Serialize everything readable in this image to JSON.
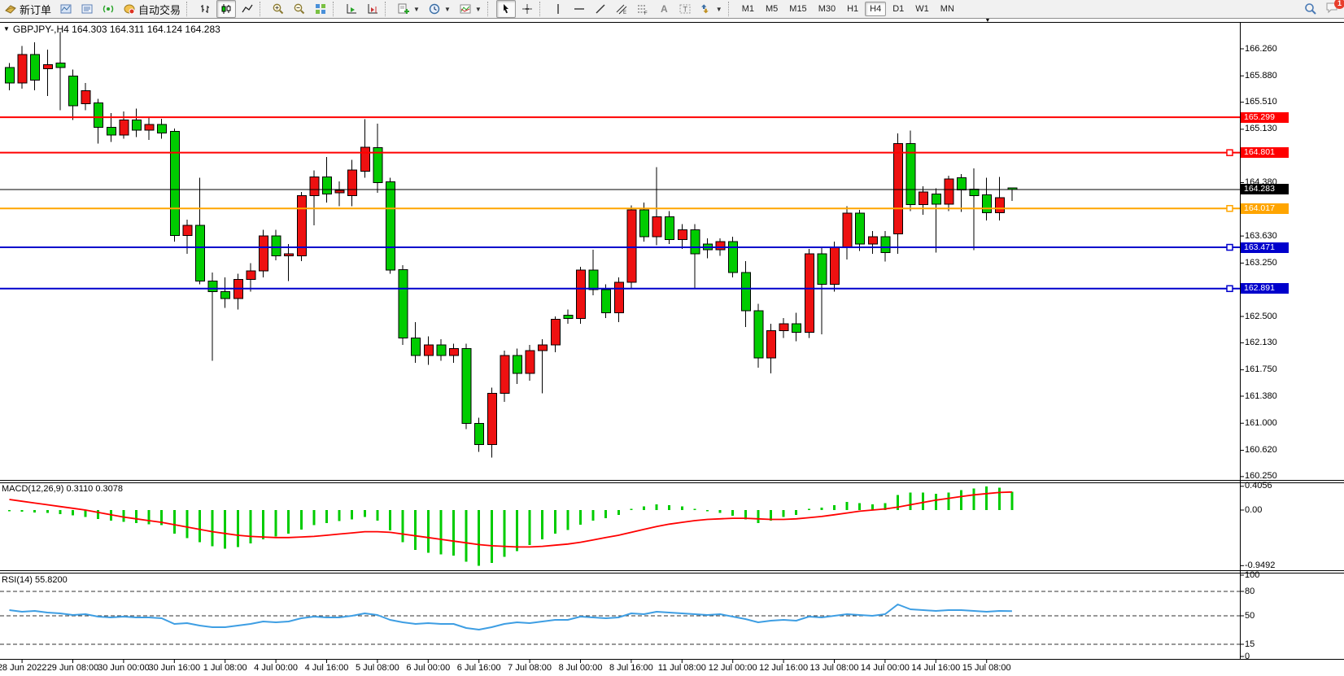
{
  "toolbar": {
    "badge_count": "1",
    "items": [
      {
        "type": "button",
        "name": "new-order",
        "icon": "new-order-icon",
        "label": "新订单"
      },
      {
        "type": "button",
        "name": "chart-profile",
        "icon": "profile-icon"
      },
      {
        "type": "button",
        "name": "market-watch",
        "icon": "market-watch-icon"
      },
      {
        "type": "button",
        "name": "signals",
        "icon": "signal-icon"
      },
      {
        "type": "button",
        "name": "auto-trading",
        "icon": "autotrade-icon",
        "label": "自动交易"
      },
      {
        "type": "sep"
      },
      {
        "type": "button",
        "name": "bar-chart",
        "icon": "bar-chart-icon"
      },
      {
        "type": "button",
        "name": "candlestick-chart",
        "icon": "candlestick-icon",
        "active": true
      },
      {
        "type": "button",
        "name": "line-chart",
        "icon": "line-chart-icon"
      },
      {
        "type": "sep"
      },
      {
        "type": "button",
        "name": "zoom-in",
        "icon": "zoom-in-icon"
      },
      {
        "type": "button",
        "name": "zoom-out",
        "icon": "zoom-out-icon"
      },
      {
        "type": "button",
        "name": "tile-windows",
        "icon": "tile-windows-icon"
      },
      {
        "type": "sep"
      },
      {
        "type": "button",
        "name": "auto-scroll",
        "icon": "auto-scroll-icon"
      },
      {
        "type": "button",
        "name": "chart-shift",
        "icon": "chart-shift-icon"
      },
      {
        "type": "sep"
      },
      {
        "type": "button",
        "name": "new-chart",
        "icon": "new-chart-icon",
        "dropdown": true
      },
      {
        "type": "button",
        "name": "period-profiles",
        "icon": "clock-icon",
        "dropdown": true
      },
      {
        "type": "button",
        "name": "indicators",
        "icon": "indicators-icon",
        "dropdown": true
      },
      {
        "type": "sep"
      },
      {
        "type": "button",
        "name": "cursor",
        "icon": "cursor-icon",
        "active": true
      },
      {
        "type": "button",
        "name": "crosshair",
        "icon": "crosshair-icon"
      },
      {
        "type": "sep"
      },
      {
        "type": "button",
        "name": "vertical-line",
        "icon": "vline-icon"
      },
      {
        "type": "button",
        "name": "horizontal-line",
        "icon": "hline-icon"
      },
      {
        "type": "button",
        "name": "trendline",
        "icon": "trendline-icon"
      },
      {
        "type": "button",
        "name": "equidistant-channel",
        "icon": "channel-icon"
      },
      {
        "type": "button",
        "name": "fibonacci",
        "icon": "fibo-icon"
      },
      {
        "type": "button",
        "name": "text",
        "icon": "text-icon"
      },
      {
        "type": "button",
        "name": "text-label",
        "icon": "label-icon"
      },
      {
        "type": "button",
        "name": "arrows",
        "icon": "arrows-icon",
        "dropdown": true
      },
      {
        "type": "sep"
      }
    ],
    "timeframes": [
      "M1",
      "M5",
      "M15",
      "M30",
      "H1",
      "H4",
      "D1",
      "W1",
      "MN"
    ],
    "active_timeframe": "H4"
  },
  "chart": {
    "title": "GBPJPY-,H4  164.303 164.311 164.124 164.283",
    "macd_label": "MACD(12,26,9) 0.3110 0.3078",
    "rsi_label": "RSI(14) 55.8200",
    "scroll_marker": "▼"
  },
  "chart_data": {
    "type": "candlestick",
    "symbol": "GBPJPY-",
    "timeframe": "H4",
    "ohlc_current": {
      "open": 164.303,
      "high": 164.311,
      "low": 164.124,
      "close": 164.283
    },
    "ylim": [
      160.25,
      166.26
    ],
    "bull_color": "#ee1111",
    "bear_color": "#00cc00",
    "candles": [
      [
        166.0,
        166.06,
        165.68,
        165.78
      ],
      [
        165.78,
        166.3,
        165.7,
        166.18
      ],
      [
        166.18,
        166.35,
        165.68,
        165.82
      ],
      [
        165.98,
        166.25,
        165.6,
        166.04
      ],
      [
        166.06,
        166.5,
        165.4,
        166.0
      ],
      [
        165.88,
        165.97,
        165.26,
        165.46
      ],
      [
        165.49,
        165.78,
        165.4,
        165.67
      ],
      [
        165.5,
        165.56,
        164.93,
        165.16
      ],
      [
        165.16,
        165.36,
        164.95,
        165.05
      ],
      [
        165.05,
        165.38,
        165.0,
        165.26
      ],
      [
        165.26,
        165.42,
        165.02,
        165.12
      ],
      [
        165.12,
        165.3,
        164.98,
        165.2
      ],
      [
        165.2,
        165.28,
        165.0,
        165.08
      ],
      [
        165.1,
        165.14,
        163.55,
        163.64
      ],
      [
        163.64,
        163.86,
        163.38,
        163.78
      ],
      [
        163.78,
        164.45,
        162.95,
        163.0
      ],
      [
        163.0,
        163.12,
        161.88,
        162.85
      ],
      [
        162.85,
        163.05,
        162.62,
        162.75
      ],
      [
        162.75,
        163.1,
        162.6,
        163.02
      ],
      [
        163.02,
        163.25,
        162.85,
        163.14
      ],
      [
        163.14,
        163.72,
        163.05,
        163.63
      ],
      [
        163.63,
        163.72,
        163.29,
        163.35
      ],
      [
        163.35,
        163.52,
        163.0,
        163.38
      ],
      [
        163.35,
        164.25,
        163.28,
        164.2
      ],
      [
        164.2,
        164.55,
        163.78,
        164.46
      ],
      [
        164.46,
        164.74,
        164.1,
        164.22
      ],
      [
        164.24,
        164.4,
        164.05,
        164.27
      ],
      [
        164.2,
        164.7,
        164.05,
        164.56
      ],
      [
        164.54,
        165.27,
        164.45,
        164.88
      ],
      [
        164.87,
        165.21,
        164.24,
        164.38
      ],
      [
        164.39,
        164.45,
        163.1,
        163.15
      ],
      [
        163.16,
        163.22,
        162.1,
        162.2
      ],
      [
        162.2,
        162.42,
        161.85,
        161.95
      ],
      [
        161.95,
        162.22,
        161.82,
        162.1
      ],
      [
        162.1,
        162.18,
        161.88,
        161.95
      ],
      [
        161.95,
        162.12,
        161.85,
        162.05
      ],
      [
        162.05,
        162.12,
        160.92,
        161.0
      ],
      [
        161.0,
        161.08,
        160.6,
        160.7
      ],
      [
        160.7,
        161.5,
        160.52,
        161.42
      ],
      [
        161.42,
        162.02,
        161.3,
        161.95
      ],
      [
        161.95,
        162.05,
        161.55,
        161.7
      ],
      [
        161.7,
        162.1,
        161.6,
        162.02
      ],
      [
        162.02,
        162.18,
        161.42,
        162.1
      ],
      [
        162.1,
        162.5,
        162.0,
        162.46
      ],
      [
        162.52,
        162.6,
        162.4,
        162.47
      ],
      [
        162.47,
        163.2,
        162.4,
        163.15
      ],
      [
        163.15,
        163.44,
        162.8,
        162.88
      ],
      [
        162.88,
        162.95,
        162.48,
        162.55
      ],
      [
        162.55,
        163.05,
        162.42,
        162.98
      ],
      [
        162.98,
        164.06,
        162.9,
        164.0
      ],
      [
        164.0,
        164.1,
        163.55,
        163.62
      ],
      [
        163.62,
        164.6,
        163.5,
        163.9
      ],
      [
        163.9,
        163.98,
        163.52,
        163.58
      ],
      [
        163.58,
        163.8,
        163.45,
        163.72
      ],
      [
        163.72,
        163.8,
        162.9,
        163.38
      ],
      [
        163.52,
        163.6,
        163.32,
        163.44
      ],
      [
        163.44,
        163.6,
        163.35,
        163.55
      ],
      [
        163.55,
        163.62,
        163.05,
        163.12
      ],
      [
        163.12,
        163.28,
        162.35,
        162.58
      ],
      [
        162.58,
        162.68,
        161.78,
        161.92
      ],
      [
        161.92,
        162.4,
        161.7,
        162.3
      ],
      [
        162.3,
        162.48,
        162.2,
        162.4
      ],
      [
        162.4,
        162.55,
        162.15,
        162.28
      ],
      [
        162.28,
        163.45,
        162.2,
        163.38
      ],
      [
        163.38,
        163.48,
        162.25,
        162.95
      ],
      [
        162.95,
        163.55,
        162.85,
        163.48
      ],
      [
        163.48,
        164.05,
        163.3,
        163.95
      ],
      [
        163.95,
        164.0,
        163.42,
        163.52
      ],
      [
        163.52,
        163.7,
        163.38,
        163.62
      ],
      [
        163.62,
        163.7,
        163.27,
        163.4
      ],
      [
        163.66,
        165.07,
        163.38,
        164.93
      ],
      [
        164.93,
        165.11,
        163.98,
        164.07
      ],
      [
        164.07,
        164.33,
        163.93,
        164.25
      ],
      [
        164.22,
        164.3,
        163.4,
        164.08
      ],
      [
        164.08,
        164.48,
        163.98,
        164.43
      ],
      [
        164.45,
        164.5,
        163.97,
        164.28
      ],
      [
        164.29,
        164.58,
        163.43,
        164.2
      ],
      [
        164.21,
        164.45,
        163.85,
        163.96
      ],
      [
        163.96,
        164.46,
        163.85,
        164.17
      ],
      [
        164.303,
        164.311,
        164.124,
        164.283
      ]
    ],
    "hlines": [
      {
        "price": 165.299,
        "label": "165.299",
        "color": "#ff0000",
        "width": 2,
        "handle": false
      },
      {
        "price": 164.801,
        "label": "164.801",
        "color": "#ff0000",
        "width": 2,
        "handle": true
      },
      {
        "price": 164.283,
        "label": "164.283",
        "color": "#000000",
        "width": 1,
        "handle": false
      },
      {
        "price": 164.017,
        "label": "164.017",
        "color": "#ffa500",
        "width": 2,
        "handle": true
      },
      {
        "price": 163.471,
        "label": "163.471",
        "color": "#0000cc",
        "width": 2,
        "handle": true
      },
      {
        "price": 162.891,
        "label": "162.891",
        "color": "#0000cc",
        "width": 2,
        "handle": true
      }
    ],
    "price_ticks": [
      {
        "t": "166.260",
        "v": 166.26
      },
      {
        "t": "165.880",
        "v": 165.88
      },
      {
        "t": "165.510",
        "v": 165.51
      },
      {
        "t": "165.130",
        "v": 165.13
      },
      {
        "t": "164.380",
        "v": 164.38
      },
      {
        "t": "163.630",
        "v": 163.63
      },
      {
        "t": "163.250",
        "v": 163.25
      },
      {
        "t": "162.500",
        "v": 162.5
      },
      {
        "t": "162.130",
        "v": 162.13
      },
      {
        "t": "161.750",
        "v": 161.75
      },
      {
        "t": "161.380",
        "v": 161.38
      },
      {
        "t": "161.000",
        "v": 161.0
      },
      {
        "t": "160.620",
        "v": 160.62
      },
      {
        "t": "160.250",
        "v": 160.25
      }
    ],
    "time_labels": [
      "28 Jun 2022",
      "29 Jun 08:00",
      "30 Jun 00:00",
      "30 Jun 16:00",
      "1 Jul 08:00",
      "4 Jul 00:00",
      "4 Jul 16:00",
      "5 Jul 08:00",
      "6 Jul 00:00",
      "6 Jul 16:00",
      "7 Jul 08:00",
      "8 Jul 00:00",
      "8 Jul 16:00",
      "11 Jul 08:00",
      "12 Jul 00:00",
      "12 Jul 16:00",
      "13 Jul 08:00",
      "14 Jul 00:00",
      "14 Jul 16:00",
      "15 Jul 08:00"
    ],
    "macd": {
      "name": "MACD(12,26,9)",
      "value": 0.311,
      "signal_value": 0.3078,
      "hist_color": "#00cc00",
      "signal_color": "#ff0000",
      "ticks": [
        {
          "t": "0.4056",
          "v": 0.4056
        },
        {
          "t": "0.00",
          "v": 0
        },
        {
          "t": "-0.9492",
          "v": -0.9492
        }
      ],
      "histogram": [
        -0.02,
        -0.03,
        -0.04,
        -0.05,
        -0.07,
        -0.09,
        -0.12,
        -0.15,
        -0.18,
        -0.2,
        -0.22,
        -0.24,
        -0.26,
        -0.4,
        -0.48,
        -0.55,
        -0.62,
        -0.66,
        -0.63,
        -0.57,
        -0.5,
        -0.45,
        -0.4,
        -0.33,
        -0.26,
        -0.22,
        -0.19,
        -0.16,
        -0.12,
        -0.18,
        -0.35,
        -0.55,
        -0.68,
        -0.73,
        -0.76,
        -0.78,
        -0.88,
        -0.9492,
        -0.9,
        -0.8,
        -0.7,
        -0.6,
        -0.5,
        -0.4,
        -0.34,
        -0.25,
        -0.18,
        -0.14,
        -0.08,
        0.02,
        0.06,
        0.1,
        0.08,
        0.06,
        0.02,
        -0.02,
        -0.05,
        -0.1,
        -0.16,
        -0.22,
        -0.18,
        -0.12,
        -0.08,
        0.02,
        0.04,
        0.08,
        0.14,
        0.12,
        0.1,
        0.12,
        0.26,
        0.3,
        0.3,
        0.28,
        0.3,
        0.34,
        0.37,
        0.4056,
        0.38,
        0.311
      ],
      "signal": [
        0.18,
        0.15,
        0.12,
        0.09,
        0.06,
        0.03,
        0.0,
        -0.04,
        -0.08,
        -0.12,
        -0.15,
        -0.18,
        -0.21,
        -0.25,
        -0.29,
        -0.33,
        -0.37,
        -0.4,
        -0.43,
        -0.45,
        -0.46,
        -0.47,
        -0.47,
        -0.46,
        -0.45,
        -0.43,
        -0.41,
        -0.39,
        -0.37,
        -0.37,
        -0.38,
        -0.41,
        -0.44,
        -0.47,
        -0.5,
        -0.53,
        -0.56,
        -0.59,
        -0.61,
        -0.62,
        -0.63,
        -0.63,
        -0.62,
        -0.6,
        -0.58,
        -0.55,
        -0.51,
        -0.47,
        -0.43,
        -0.38,
        -0.33,
        -0.28,
        -0.24,
        -0.21,
        -0.18,
        -0.16,
        -0.15,
        -0.14,
        -0.14,
        -0.15,
        -0.16,
        -0.16,
        -0.15,
        -0.13,
        -0.11,
        -0.08,
        -0.05,
        -0.02,
        0.0,
        0.02,
        0.05,
        0.09,
        0.13,
        0.17,
        0.2,
        0.23,
        0.26,
        0.28,
        0.3,
        0.3078
      ]
    },
    "rsi": {
      "name": "RSI(14)",
      "value": 55.82,
      "color": "#3e9ee3",
      "levels": [
        80,
        50,
        15
      ],
      "ticks": [
        {
          "t": "100",
          "v": 100
        },
        {
          "t": "80",
          "v": 80
        },
        {
          "t": "50",
          "v": 50
        },
        {
          "t": "15",
          "v": 15
        },
        {
          "t": "0",
          "v": 0
        }
      ],
      "values": [
        57,
        55,
        56,
        54,
        53,
        51,
        52,
        49,
        48,
        49,
        48,
        48,
        47,
        40,
        41,
        38,
        36,
        36,
        38,
        40,
        43,
        42,
        43,
        47,
        49,
        48,
        48,
        50,
        53,
        51,
        45,
        42,
        40,
        41,
        40,
        40,
        35,
        33,
        36,
        40,
        42,
        41,
        43,
        45,
        45,
        49,
        48,
        47,
        48,
        53,
        52,
        55,
        54,
        53,
        52,
        51,
        52,
        49,
        46,
        42,
        44,
        45,
        44,
        49,
        48,
        50,
        52,
        51,
        50,
        52,
        64,
        58,
        57,
        56,
        57,
        57,
        56,
        55,
        56,
        55.82
      ]
    }
  }
}
